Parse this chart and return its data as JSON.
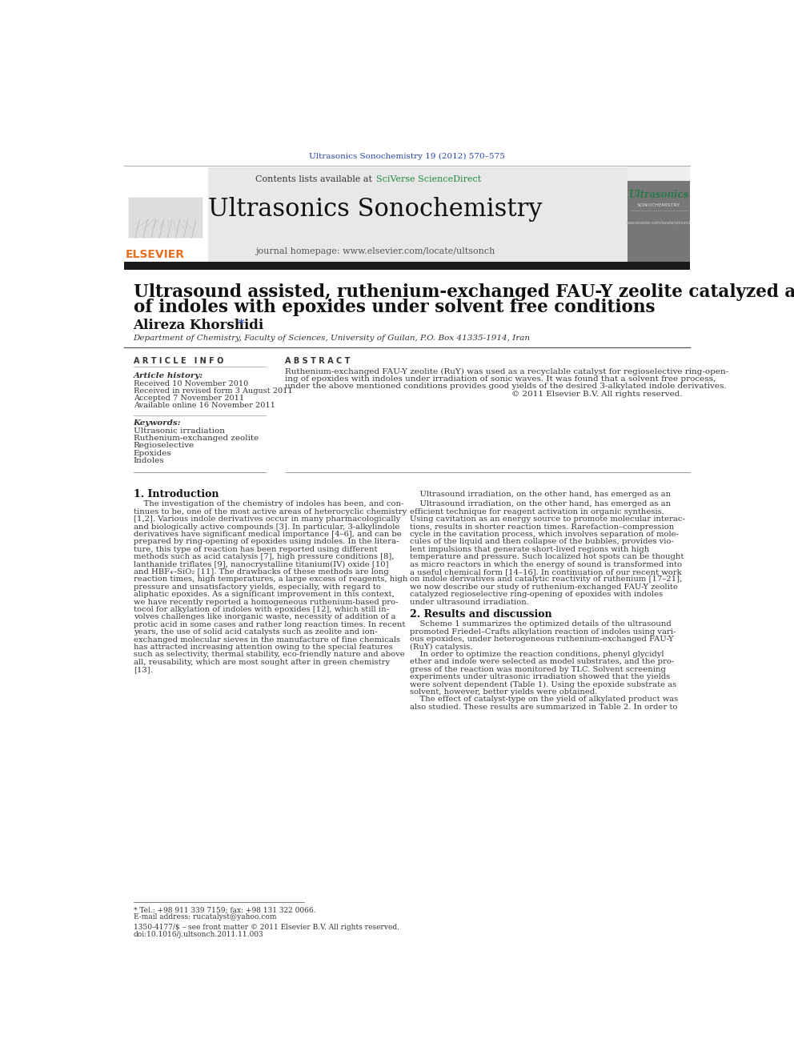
{
  "page_bg": "#ffffff",
  "journal_ref": "Ultrasonics Sonochemistry 19 (2012) 570–575",
  "journal_ref_color": "#2244aa",
  "contents_text": "Contents lists available at ",
  "sciverse_text": "SciVerse ScienceDirect",
  "sciverse_color": "#228844",
  "journal_name": "Ultrasonics Sonochemistry",
  "journal_homepage": "journal homepage: www.elsevier.com/locate/ultsonch",
  "header_bg": "#e8e8e8",
  "black_bar_color": "#1a1a1a",
  "title_line1": "Ultrasound assisted, ruthenium-exchanged FAU-Y zeolite catalyzed alkylation",
  "title_line2": "of indoles with epoxides under solvent free conditions",
  "affiliation": "Department of Chemistry, Faculty of Sciences, University of Guilan, P.O. Box 41335-1914, Iran",
  "article_info_label": "A R T I C L E   I N F O",
  "abstract_label": "A B S T R A C T",
  "article_history_label": "Article history:",
  "history_items": [
    "Received 10 November 2010",
    "Received in revised form 3 August 2011",
    "Accepted 7 November 2011",
    "Available online 16 November 2011"
  ],
  "keywords_label": "Keywords:",
  "keywords": [
    "Ultrasonic irradiation",
    "Ruthenium-exchanged zeolite",
    "Regioselective",
    "Epoxides",
    "Indoles"
  ],
  "abstract_lines": [
    "Ruthenium-exchanged FAU-Y zeolite (RuY) was used as a recyclable catalyst for regioselective ring-open-",
    "ing of epoxides with indoles under irradiation of sonic waves. It was found that a solvent free process,",
    "under the above mentioned conditions provides good yields of the desired 3-alkylated indole derivatives.",
    "© 2011 Elsevier B.V. All rights reserved."
  ],
  "section1_title": "1. Introduction",
  "section1_col1_lines": [
    "    The investigation of the chemistry of indoles has been, and con-",
    "tinues to be, one of the most active areas of heterocyclic chemistry",
    "[1,2]. Various indole derivatives occur in many pharmacologically",
    "and biologically active compounds [3]. In particular, 3-alkylindole",
    "derivatives have significant medical importance [4–6], and can be",
    "prepared by ring-opening of epoxides using indoles. In the litera-",
    "ture, this type of reaction has been reported using different",
    "methods such as acid catalysis [7], high pressure conditions [8],",
    "lanthanide triflates [9], nanocrystalline titanium(IV) oxide [10]",
    "and HBF₄–SiO₂ [11]. The drawbacks of these methods are long",
    "reaction times, high temperatures, a large excess of reagents, high",
    "pressure and unsatisfactory yields, especially, with regard to",
    "aliphatic epoxides. As a significant improvement in this context,",
    "we have recently reported a homogeneous ruthenium-based pro-",
    "tocol for alkylation of indoles with epoxides [12], which still in-",
    "volves challenges like inorganic waste, necessity of addition of a",
    "protic acid in some cases and rather long reaction times. In recent",
    "years, the use of solid acid catalysts such as zeolite and ion-",
    "exchanged molecular sieves in the manufacture of fine chemicals",
    "has attracted increasing attention owing to the special features",
    "such as selectivity, thermal stability, eco-friendly nature and above",
    "all, reusability, which are most sought after in green chemistry",
    "[13]."
  ],
  "section1_col2_lines": [
    "    Ultrasound irradiation, on the other hand, has emerged as an",
    "efficient technique for reagent activation in organic synthesis.",
    "Using cavitation as an energy source to promote molecular interac-",
    "tions, results in shorter reaction times. Rarefaction–compression",
    "cycle in the cavitation process, which involves separation of mole-",
    "cules of the liquid and then collapse of the bubbles, provides vio-",
    "lent impulsions that generate short-lived regions with high",
    "temperature and pressure. Such localized hot spots can be thought",
    "as micro reactors in which the energy of sound is transformed into",
    "a useful chemical form [14–16]. In continuation of our recent work",
    "on indole derivatives and catalytic reactivity of ruthenium [17–21],",
    "we now describe our study of ruthenium-exchanged FAU-Y zeolite",
    "catalyzed regioselective ring-opening of epoxides with indoles",
    "under ultrasound irradiation."
  ],
  "section2_title": "2. Results and discussion",
  "section2_lines": [
    "    Scheme 1 summarizes the optimized details of the ultrasound",
    "promoted Friedel–Crafts alkylation reaction of indoles using vari-",
    "ous epoxides, under heterogeneous ruthenium-exchanged FAU-Y",
    "(RuY) catalysis.",
    "    In order to optimize the reaction conditions, phenyl glycidyl",
    "ether and indole were selected as model substrates, and the pro-",
    "gress of the reaction was monitored by TLC. Solvent screening",
    "experiments under ultrasonic irradiation showed that the yields",
    "were solvent dependent (Table 1). Using the epoxide substrate as",
    "solvent, however, better yields were obtained.",
    "    The effect of catalyst-type on the yield of alkylated product was",
    "also studied. These results are summarized in Table 2. In order to"
  ],
  "footer_note": "* Tel.: +98 911 339 7159; fax: +98 131 322 0066.",
  "footer_email": "E-mail address: rucatalyst@yahoo.com",
  "footer_issn": "1350-4177/$ – see front matter © 2011 Elsevier B.V. All rights reserved.",
  "footer_doi": "doi:10.1016/j.ultsonch.2011.11.003",
  "elsevier_color": "#e67020",
  "ultrasonics_logo_color": "#2a7a4a"
}
